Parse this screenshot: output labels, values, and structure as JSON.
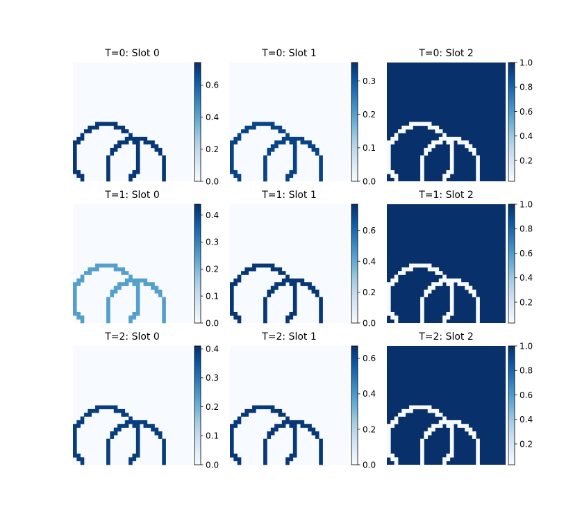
{
  "chart_data": {
    "type": "heatmap",
    "colormap": "Blues",
    "colormap_stops": [
      "#f7fbff",
      "#deebf7",
      "#c6dbef",
      "#9ecae1",
      "#6baed6",
      "#4292c6",
      "#2171b5",
      "#08519c",
      "#08306b"
    ],
    "grid_size": 32,
    "panels": [
      {
        "title": "T=0: Slot 0",
        "vmin": 0.0,
        "vmax": 0.74,
        "ticks": [
          "0.0",
          "0.2",
          "0.4",
          "0.6"
        ],
        "tick_values": [
          0.0,
          0.2,
          0.4,
          0.6
        ],
        "background": 0.0,
        "outline": 0.72,
        "mode": "outline"
      },
      {
        "title": "T=0: Slot 1",
        "vmin": 0.0,
        "vmax": 0.355,
        "ticks": [
          "0.0",
          "0.1",
          "0.2",
          "0.3"
        ],
        "tick_values": [
          0.0,
          0.1,
          0.2,
          0.3
        ],
        "background": 0.0,
        "outline": 0.33,
        "mode": "outline"
      },
      {
        "title": "T=0: Slot 2",
        "vmin": 0.03,
        "vmax": 1.0,
        "ticks": [
          "0.2",
          "0.4",
          "0.6",
          "0.8",
          "1.0"
        ],
        "tick_values": [
          0.2,
          0.4,
          0.6,
          0.8,
          1.0
        ],
        "background": 1.0,
        "outline": 0.03,
        "mode": "inverse"
      },
      {
        "title": "T=1: Slot 0",
        "vmin": 0.0,
        "vmax": 0.44,
        "ticks": [
          "0.0",
          "0.1",
          "0.2",
          "0.3",
          "0.4"
        ],
        "tick_values": [
          0.0,
          0.1,
          0.2,
          0.3,
          0.4
        ],
        "background": 0.0,
        "outline": 0.25,
        "mode": "outline"
      },
      {
        "title": "T=1: Slot 1",
        "vmin": 0.0,
        "vmax": 0.77,
        "ticks": [
          "0.0",
          "0.2",
          "0.4",
          "0.6"
        ],
        "tick_values": [
          0.0,
          0.2,
          0.4,
          0.6
        ],
        "background": 0.0,
        "outline": 0.75,
        "mode": "outline"
      },
      {
        "title": "T=1: Slot 2",
        "vmin": 0.03,
        "vmax": 1.0,
        "ticks": [
          "0.2",
          "0.4",
          "0.6",
          "0.8",
          "1.0"
        ],
        "tick_values": [
          0.2,
          0.4,
          0.6,
          0.8,
          1.0
        ],
        "background": 1.0,
        "outline": 0.03,
        "mode": "inverse"
      },
      {
        "title": "T=2: Slot 0",
        "vmin": 0.0,
        "vmax": 0.41,
        "ticks": [
          "0.0",
          "0.1",
          "0.2",
          "0.3",
          "0.4"
        ],
        "tick_values": [
          0.0,
          0.1,
          0.2,
          0.3,
          0.4
        ],
        "background": 0.0,
        "outline": 0.39,
        "mode": "outline"
      },
      {
        "title": "T=2: Slot 1",
        "vmin": 0.0,
        "vmax": 0.67,
        "ticks": [
          "0.0",
          "0.2",
          "0.4",
          "0.6"
        ],
        "tick_values": [
          0.0,
          0.2,
          0.4,
          0.6
        ],
        "background": 0.0,
        "outline": 0.65,
        "mode": "outline"
      },
      {
        "title": "T=2: Slot 2",
        "vmin": 0.03,
        "vmax": 1.0,
        "ticks": [
          "0.2",
          "0.4",
          "0.6",
          "0.8",
          "1.0"
        ],
        "tick_values": [
          0.2,
          0.4,
          0.6,
          0.8,
          1.0
        ],
        "background": 1.0,
        "outline": 0.03,
        "mode": "inverse"
      }
    ]
  }
}
